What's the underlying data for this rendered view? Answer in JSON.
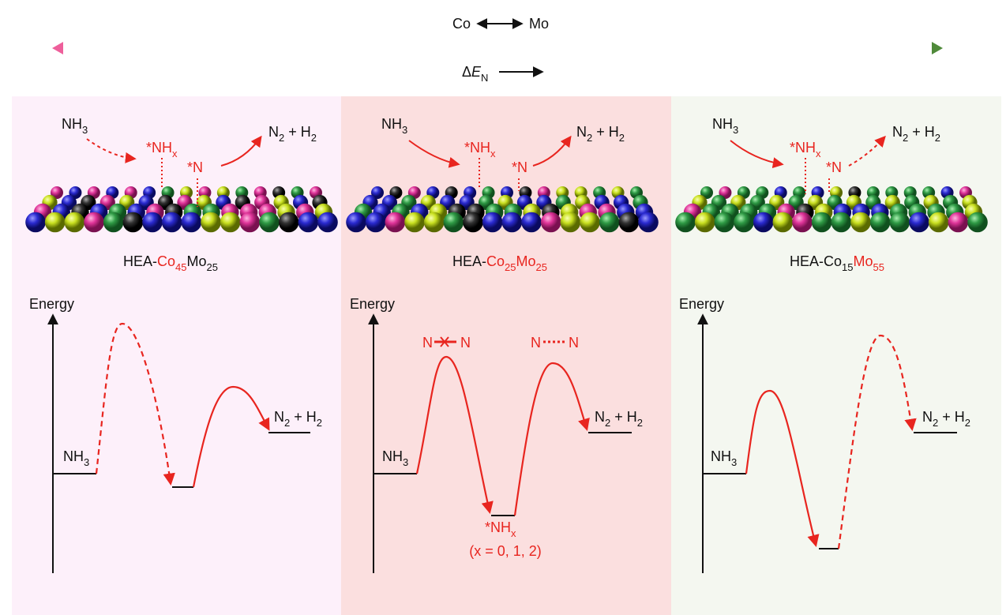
{
  "header": {
    "left": "Co",
    "right": "Mo",
    "delta": [
      {
        "text": "Δ"
      },
      {
        "text": "E",
        "italic": true
      },
      {
        "text": "N",
        "sub": true
      }
    ]
  },
  "panels": [
    {
      "reactant": [
        {
          "text": "NH"
        },
        {
          "text": "3",
          "sub": true
        }
      ],
      "intermediate": [
        {
          "text": "*NH"
        },
        {
          "text": "x",
          "sub": true
        }
      ],
      "adsorbed": [
        {
          "text": "*N"
        }
      ],
      "product": [
        {
          "text": "N"
        },
        {
          "text": "2",
          "sub": true
        },
        {
          "text": " + H"
        },
        {
          "text": "2",
          "sub": true
        }
      ],
      "catalyst": [
        {
          "text": "HEA-"
        },
        {
          "text": "Co",
          "color": "#e8251f"
        },
        {
          "text": "45",
          "sub": true,
          "color": "#e8251f"
        },
        {
          "text": "Mo"
        },
        {
          "text": "25",
          "sub": true
        }
      ],
      "axis_label": "Energy",
      "energy_reactant": [
        {
          "text": "NH"
        },
        {
          "text": "3",
          "sub": true
        }
      ],
      "energy_product": [
        {
          "text": "N"
        },
        {
          "text": "2",
          "sub": true
        },
        {
          "text": " + H"
        },
        {
          "text": "2",
          "sub": true
        }
      ]
    },
    {
      "reactant": [
        {
          "text": "NH"
        },
        {
          "text": "3",
          "sub": true
        }
      ],
      "intermediate": [
        {
          "text": "*NH"
        },
        {
          "text": "x",
          "sub": true
        }
      ],
      "adsorbed": [
        {
          "text": "*N"
        }
      ],
      "product": [
        {
          "text": "N"
        },
        {
          "text": "2",
          "sub": true
        },
        {
          "text": " + H"
        },
        {
          "text": "2",
          "sub": true
        }
      ],
      "catalyst": [
        {
          "text": "HEA-"
        },
        {
          "text": "Co",
          "color": "#e8251f"
        },
        {
          "text": "25",
          "sub": true,
          "color": "#e8251f"
        },
        {
          "text": "Mo",
          "color": "#e8251f"
        },
        {
          "text": "25",
          "sub": true,
          "color": "#e8251f"
        }
      ],
      "axis_label": "Energy",
      "energy_reactant": [
        {
          "text": "NH"
        },
        {
          "text": "3",
          "sub": true
        }
      ],
      "energy_product": [
        {
          "text": "N"
        },
        {
          "text": "2",
          "sub": true
        },
        {
          "text": " + H"
        },
        {
          "text": "2",
          "sub": true
        }
      ],
      "barrier_1": [
        "N",
        "N"
      ],
      "barrier_2": [
        "N",
        "N"
      ],
      "well_label": [
        {
          "text": "*NH"
        },
        {
          "text": "x",
          "sub": true
        }
      ],
      "well_note": "(x = 0, 1, 2)"
    },
    {
      "reactant": [
        {
          "text": "NH"
        },
        {
          "text": "3",
          "sub": true
        }
      ],
      "intermediate": [
        {
          "text": "*NH"
        },
        {
          "text": "x",
          "sub": true
        }
      ],
      "adsorbed": [
        {
          "text": "*N"
        }
      ],
      "product": [
        {
          "text": "N"
        },
        {
          "text": "2",
          "sub": true
        },
        {
          "text": " + H"
        },
        {
          "text": "2",
          "sub": true
        }
      ],
      "catalyst": [
        {
          "text": "HEA-Co"
        },
        {
          "text": "15",
          "sub": true
        },
        {
          "text": "Mo",
          "color": "#e8251f"
        },
        {
          "text": "55",
          "sub": true,
          "color": "#e8251f"
        }
      ],
      "axis_label": "Energy",
      "energy_reactant": [
        {
          "text": "NH"
        },
        {
          "text": "3",
          "sub": true
        }
      ],
      "energy_product": [
        {
          "text": "N"
        },
        {
          "text": "2",
          "sub": true
        },
        {
          "text": " + H"
        },
        {
          "text": "2",
          "sub": true
        }
      ]
    }
  ]
}
